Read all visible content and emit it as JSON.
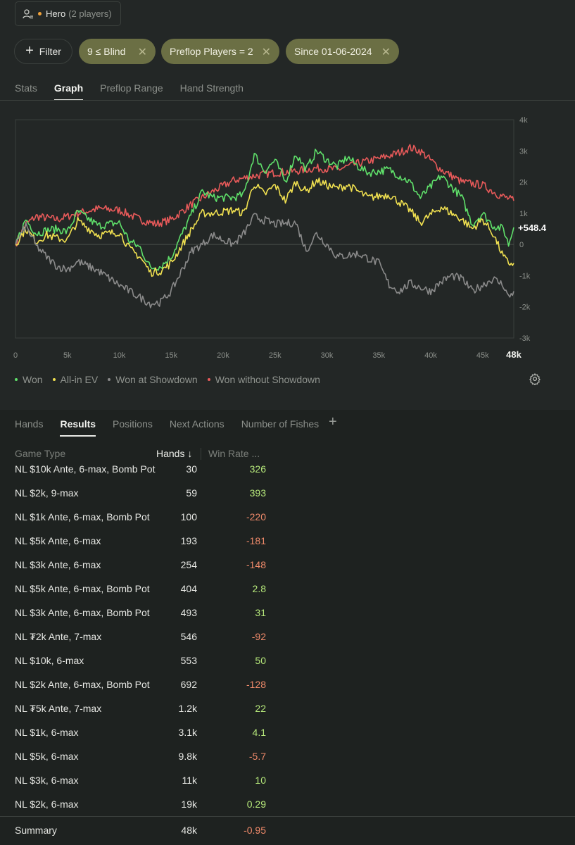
{
  "player": {
    "name": "Hero",
    "count_label": "(2 players)"
  },
  "filters": {
    "add_label": "Filter",
    "pills": [
      "9 ≤ Blind",
      "Preflop Players = 2",
      "Since 01-06-2024"
    ]
  },
  "top_tabs": [
    "Stats",
    "Graph",
    "Preflop Range",
    "Hand Strength"
  ],
  "top_active": "Graph",
  "chart_data": {
    "type": "line",
    "x_ticks": [
      "0",
      "5k",
      "10k",
      "15k",
      "20k",
      "25k",
      "30k",
      "35k",
      "40k",
      "45k"
    ],
    "x_end_label": "48k",
    "y_ticks": [
      "4k",
      "3k",
      "2k",
      "1k",
      "0",
      "-1k",
      "-2k",
      "-3k"
    ],
    "ylim": [
      -3000,
      4000
    ],
    "xlim": [
      0,
      48000
    ],
    "current_value_label": "+548.4",
    "series": [
      {
        "name": "Won without Showdown",
        "color": "#e85a5a",
        "x": [
          0,
          1000,
          2000,
          4000,
          6000,
          8000,
          10000,
          12000,
          13500,
          15000,
          17000,
          19000,
          21000,
          23000,
          25000,
          27000,
          29000,
          31000,
          33000,
          35000,
          37000,
          38000,
          39000,
          41000,
          43000,
          45000,
          46500,
          48000
        ],
        "y": [
          0,
          650,
          900,
          800,
          1000,
          1150,
          1100,
          800,
          650,
          800,
          1300,
          1700,
          2050,
          2200,
          2300,
          2350,
          2450,
          2400,
          2600,
          2750,
          2950,
          3100,
          3000,
          2400,
          2000,
          1900,
          1600,
          1400
        ]
      },
      {
        "name": "Won",
        "color": "#5fe06a",
        "x": [
          0,
          1000,
          2000,
          3000,
          4000,
          5000,
          6000,
          8000,
          10000,
          11000,
          12000,
          13000,
          14000,
          15000,
          17000,
          18000,
          19000,
          21000,
          22000,
          23000,
          24000,
          25000,
          26000,
          27000,
          28000,
          29000,
          30000,
          31000,
          32000,
          33000,
          34000,
          36000,
          38000,
          39000,
          41000,
          43000,
          44000,
          45000,
          46000,
          47000,
          47500,
          48000
        ],
        "y": [
          0,
          800,
          350,
          450,
          500,
          400,
          1050,
          600,
          700,
          100,
          -100,
          -750,
          -700,
          -400,
          1000,
          1700,
          1500,
          1500,
          1600,
          2900,
          2350,
          2700,
          2000,
          2900,
          2400,
          3000,
          2700,
          2500,
          2800,
          2500,
          2300,
          2400,
          2000,
          1500,
          2200,
          1500,
          650,
          1000,
          600,
          500,
          0,
          548
        ]
      },
      {
        "name": "All-in EV",
        "color": "#f0e050",
        "x": [
          0,
          1000,
          2000,
          3000,
          4000,
          5000,
          6000,
          8000,
          10000,
          11000,
          12000,
          13000,
          14000,
          15000,
          17000,
          18000,
          19000,
          21000,
          22000,
          23000,
          24000,
          25000,
          26000,
          27000,
          28000,
          29000,
          30000,
          31000,
          32000,
          33000,
          34000,
          36000,
          38000,
          39000,
          41000,
          43000,
          44000,
          45000,
          46000,
          47000,
          47500,
          48000
        ],
        "y": [
          0,
          500,
          100,
          300,
          200,
          150,
          750,
          300,
          400,
          -150,
          -400,
          -900,
          -850,
          -600,
          500,
          1000,
          1000,
          1100,
          1000,
          1950,
          1600,
          1900,
          1400,
          2000,
          1700,
          2050,
          1900,
          1800,
          1900,
          1700,
          1500,
          1600,
          1100,
          700,
          1200,
          800,
          500,
          800,
          350,
          -400,
          -600,
          -600
        ]
      },
      {
        "name": "Won at Showdown",
        "color": "#8a8a8a",
        "x": [
          0,
          1000,
          2000,
          3000,
          4000,
          5000,
          6000,
          8000,
          10000,
          11000,
          12000,
          13000,
          14000,
          15000,
          17000,
          18000,
          19000,
          21000,
          22000,
          23000,
          25000,
          27000,
          28000,
          29000,
          30000,
          31000,
          33000,
          35000,
          36000,
          37000,
          38000,
          40000,
          41000,
          42000,
          43000,
          44000,
          45000,
          46000,
          47000,
          47500,
          48000
        ],
        "y": [
          0,
          600,
          -50,
          -400,
          -700,
          -800,
          -550,
          -850,
          -1300,
          -1500,
          -1700,
          -1900,
          -1850,
          -1500,
          -200,
          0,
          300,
          0,
          350,
          900,
          650,
          700,
          -200,
          350,
          0,
          -400,
          -300,
          -600,
          -1300,
          -1500,
          -1250,
          -1500,
          -1200,
          -1000,
          -1100,
          -1500,
          -1300,
          -1100,
          -1300,
          -1700,
          -1500
        ]
      }
    ],
    "legend": [
      "Won",
      "All-in EV",
      "Won at Showdown",
      "Won without Showdown"
    ],
    "legend_colors": [
      "#5fe06a",
      "#f0e050",
      "#8a8a8a",
      "#e85a5a"
    ]
  },
  "bottom_tabs": [
    "Hands",
    "Results",
    "Positions",
    "Next Actions",
    "Number of Fishes"
  ],
  "bottom_active": "Results",
  "add_tab_label": "+",
  "table": {
    "headers": {
      "game_type": "Game Type",
      "hands": "Hands ↓",
      "win_rate": "Win Rate ..."
    },
    "rows": [
      {
        "game": "NL $10k Ante, 6-max, Bomb Pot",
        "hands": "30",
        "rate": "326",
        "sign": "pos"
      },
      {
        "game": "NL $2k, 9-max",
        "hands": "59",
        "rate": "393",
        "sign": "pos"
      },
      {
        "game": "NL $1k Ante, 6-max, Bomb Pot",
        "hands": "100",
        "rate": "-220",
        "sign": "neg"
      },
      {
        "game": "NL $5k Ante, 6-max",
        "hands": "193",
        "rate": "-181",
        "sign": "neg"
      },
      {
        "game": "NL $3k Ante, 6-max",
        "hands": "254",
        "rate": "-148",
        "sign": "neg"
      },
      {
        "game": "NL $5k Ante, 6-max, Bomb Pot",
        "hands": "404",
        "rate": "2.8",
        "sign": "pos"
      },
      {
        "game": "NL $3k Ante, 6-max, Bomb Pot",
        "hands": "493",
        "rate": "31",
        "sign": "pos"
      },
      {
        "game": "NL ₮2k Ante, 7-max",
        "hands": "546",
        "rate": "-92",
        "sign": "neg"
      },
      {
        "game": "NL $10k, 6-max",
        "hands": "553",
        "rate": "50",
        "sign": "pos"
      },
      {
        "game": "NL $2k Ante, 6-max, Bomb Pot",
        "hands": "692",
        "rate": "-128",
        "sign": "neg"
      },
      {
        "game": "NL ₮5k Ante, 7-max",
        "hands": "1.2k",
        "rate": "22",
        "sign": "pos"
      },
      {
        "game": "NL $1k, 6-max",
        "hands": "3.1k",
        "rate": "4.1",
        "sign": "pos"
      },
      {
        "game": "NL $5k, 6-max",
        "hands": "9.8k",
        "rate": "-5.7",
        "sign": "neg"
      },
      {
        "game": "NL $3k, 6-max",
        "hands": "11k",
        "rate": "10",
        "sign": "pos"
      },
      {
        "game": "NL $2k, 6-max",
        "hands": "19k",
        "rate": "0.29",
        "sign": "pos"
      }
    ],
    "summary": {
      "label": "Summary",
      "hands": "48k",
      "rate": "-0.95",
      "sign": "neg"
    }
  }
}
